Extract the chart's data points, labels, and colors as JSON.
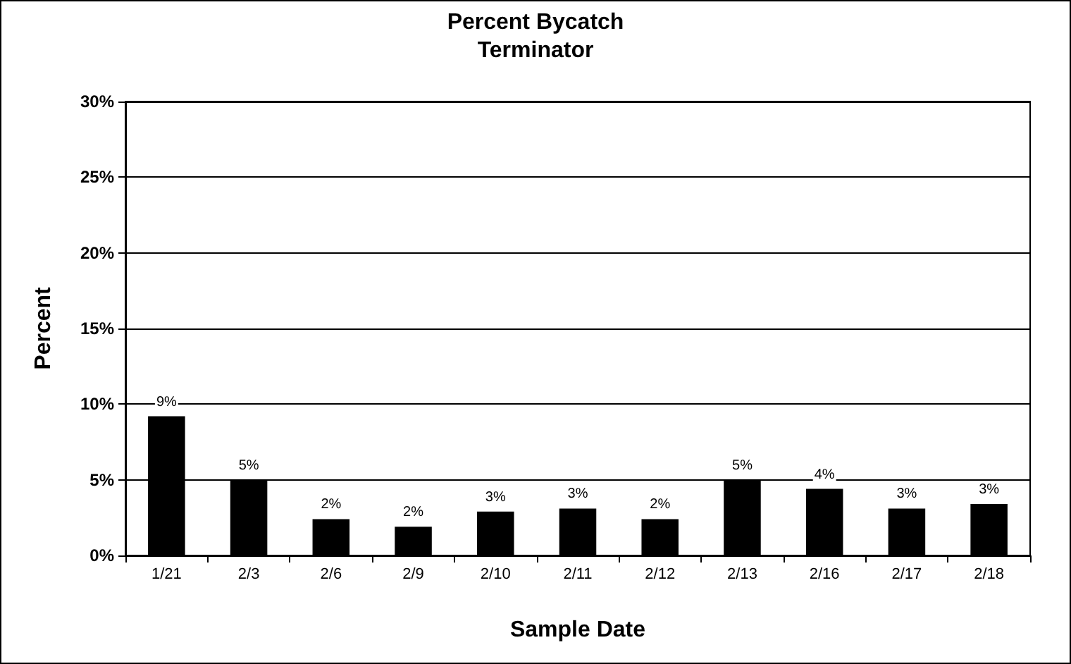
{
  "chart_data": {
    "type": "bar",
    "title": "Percent Bycatch",
    "subtitle": "Terminator",
    "xlabel": "Sample Date",
    "ylabel": "Percent",
    "categories": [
      "1/21",
      "2/3",
      "2/6",
      "2/9",
      "2/10",
      "2/11",
      "2/12",
      "2/13",
      "2/16",
      "2/17",
      "2/18"
    ],
    "values": [
      9.2,
      5.0,
      2.4,
      1.9,
      2.9,
      3.1,
      2.4,
      5.0,
      4.4,
      3.1,
      3.4
    ],
    "value_labels": [
      "9%",
      "5%",
      "2%",
      "2%",
      "3%",
      "3%",
      "2%",
      "5%",
      "4%",
      "3%",
      "3%"
    ],
    "color": "#000000",
    "ylim": [
      0,
      30
    ],
    "yticks": [
      {
        "value": 0,
        "label": "0%"
      },
      {
        "value": 5,
        "label": "5%"
      },
      {
        "value": 10,
        "label": "10%"
      },
      {
        "value": 15,
        "label": "15%"
      },
      {
        "value": 20,
        "label": "20%"
      },
      {
        "value": 25,
        "label": "25%"
      },
      {
        "value": 30,
        "label": "30%"
      }
    ],
    "grid": "y"
  }
}
